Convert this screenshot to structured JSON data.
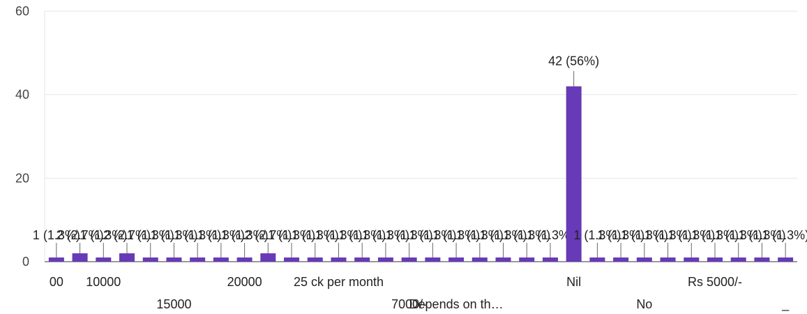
{
  "chart_data": {
    "type": "bar",
    "ylim": [
      0,
      60
    ],
    "yticks": [
      0,
      20,
      40,
      60
    ],
    "grid": true,
    "bar_color": "#673ab7",
    "categories": [
      "00",
      "",
      "10000",
      "",
      "",
      "15000",
      "",
      "",
      "20000",
      "",
      "",
      "",
      "25 ck per month",
      "",
      "",
      "7000/-",
      "",
      "Depends on th…",
      "",
      "",
      "",
      "",
      "Nil",
      "",
      "",
      "No",
      "",
      "",
      "Rs 5000/-",
      "",
      "",
      "_"
    ],
    "values": [
      1,
      2,
      1,
      2,
      1,
      1,
      1,
      1,
      1,
      2,
      1,
      1,
      1,
      1,
      1,
      1,
      1,
      1,
      1,
      1,
      1,
      1,
      42,
      1,
      1,
      1,
      1,
      1,
      1,
      1,
      1,
      1
    ],
    "labels": [
      "1 (1.3%)",
      "2 (2.7%)",
      "1 (1.3%)",
      "2 (2.7%)",
      "1 (1.3%)",
      "1 (1.3%)",
      "1 (1.3%)",
      "1 (1.3%)",
      "1 (1.3%)",
      "2 (2.7%)",
      "1 (1.3%)",
      "1 (1.3%)",
      "1 (1.3%)",
      "1 (1.3%)",
      "1 (1.3%)",
      "1 (1.3%)",
      "1 (1.3%)",
      "1 (1.3%)",
      "1 (1.3%)",
      "1 (1.3%)",
      "1 (1.3%)",
      "1 (1.3%)",
      "42 (56%)",
      "1 (1.3%)",
      "1 (1.3%)",
      "1 (1.3%)",
      "1 (1.3%)",
      "1 (1.3%)",
      "1 (1.3%)",
      "1 (1.3%)",
      "1 (1.3%)",
      "1 (1.3%)"
    ]
  }
}
